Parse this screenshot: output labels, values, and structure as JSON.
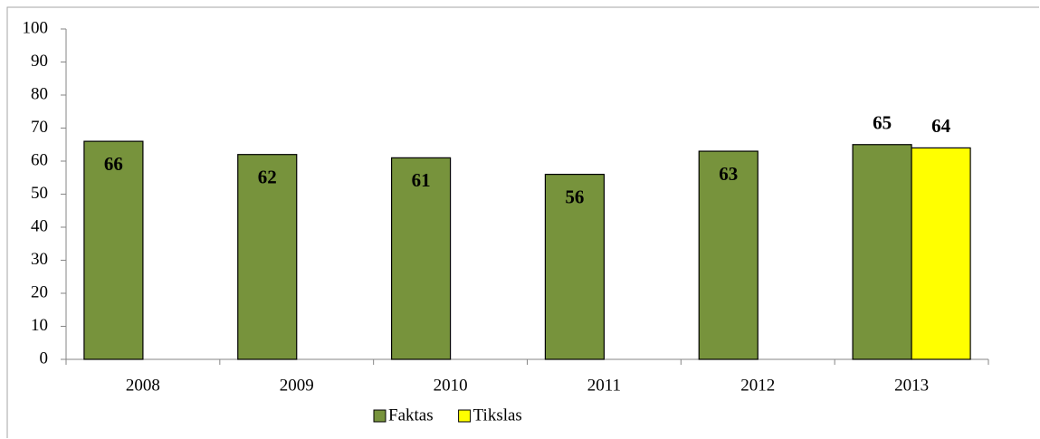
{
  "chart_data": {
    "type": "bar",
    "categories": [
      "2008",
      "2009",
      "2010",
      "2011",
      "2012",
      "2013"
    ],
    "series": [
      {
        "name": "Faktas",
        "color": "#77933c",
        "values": [
          66,
          62,
          61,
          56,
          63,
          65
        ]
      },
      {
        "name": "Tikslas",
        "color": "#ffff00",
        "values": [
          null,
          null,
          null,
          null,
          null,
          64
        ]
      }
    ],
    "ylim": [
      0,
      100
    ],
    "yticks": [
      0,
      10,
      20,
      30,
      40,
      50,
      60,
      70,
      80,
      90,
      100
    ],
    "grid": false,
    "legend": "bottom"
  }
}
